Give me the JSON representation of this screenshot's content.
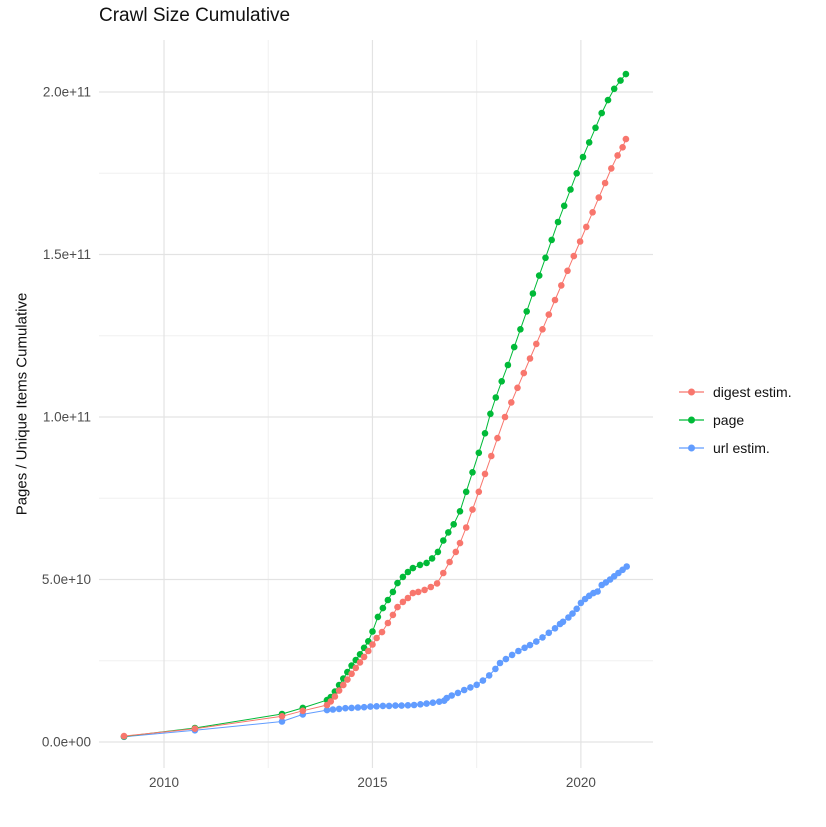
{
  "title": "Crawl Size Cumulative",
  "axes": {
    "y_title": "Pages / Unique Items Cumulative",
    "x_title": ""
  },
  "legend": {
    "position": "right",
    "items": [
      {
        "label": "digest estim.",
        "color": "#F8766D"
      },
      {
        "label": "page",
        "color": "#00BA38"
      },
      {
        "label": "url estim.",
        "color": "#619CFF"
      }
    ]
  },
  "chart_data": {
    "type": "line",
    "title": "Crawl Size Cumulative",
    "xlabel": "",
    "ylabel": "Pages / Unique Items Cumulative",
    "x_domain": [
      2008.44,
      2021.73
    ],
    "y_domain": [
      -8,
      216
    ],
    "y_unit": "1e9",
    "x_ticks": [
      {
        "value": 2010,
        "label": "2010"
      },
      {
        "value": 2015,
        "label": "2015"
      },
      {
        "value": 2020,
        "label": "2020"
      }
    ],
    "x_minor_ticks": [
      2012.5,
      2017.5
    ],
    "y_ticks": [
      {
        "value": 0,
        "label": "0.0e+00"
      },
      {
        "value": 50,
        "label": "5.0e+10"
      },
      {
        "value": 100,
        "label": "1.0e+11"
      },
      {
        "value": 150,
        "label": "1.5e+11"
      },
      {
        "value": 200,
        "label": "2.0e+11"
      }
    ],
    "y_minor_ticks": [
      25,
      75,
      125,
      175
    ],
    "grid": {
      "major_color": "#E3E3E3",
      "minor_color": "#F0F0F0",
      "background": "#FFFFFF"
    },
    "marker_radius": 3.3,
    "series": [
      {
        "name": "digest estim.",
        "color": "#F8766D",
        "points": [
          [
            2009.04,
            1.8
          ],
          [
            2010.74,
            4.1
          ],
          [
            2012.83,
            7.9
          ],
          [
            2013.33,
            9.6
          ],
          [
            2013.91,
            11.4
          ],
          [
            2014.0,
            12.5
          ],
          [
            2014.1,
            14.0
          ],
          [
            2014.2,
            15.8
          ],
          [
            2014.3,
            17.5
          ],
          [
            2014.4,
            19.2
          ],
          [
            2014.5,
            21.0
          ],
          [
            2014.6,
            22.8
          ],
          [
            2014.7,
            24.5
          ],
          [
            2014.8,
            26.2
          ],
          [
            2014.9,
            28.0
          ],
          [
            2015.0,
            30.0
          ],
          [
            2015.1,
            32.0
          ],
          [
            2015.23,
            33.8
          ],
          [
            2015.37,
            36.6
          ],
          [
            2015.49,
            39.1
          ],
          [
            2015.6,
            41.5
          ],
          [
            2015.73,
            43.1
          ],
          [
            2015.85,
            44.3
          ],
          [
            2015.97,
            45.8
          ],
          [
            2016.1,
            46.2
          ],
          [
            2016.25,
            46.8
          ],
          [
            2016.4,
            47.7
          ],
          [
            2016.55,
            48.8
          ],
          [
            2016.7,
            52.0
          ],
          [
            2016.85,
            55.4
          ],
          [
            2017.0,
            58.5
          ],
          [
            2017.1,
            61.2
          ],
          [
            2017.25,
            66.0
          ],
          [
            2017.4,
            71.5
          ],
          [
            2017.55,
            77.0
          ],
          [
            2017.7,
            82.5
          ],
          [
            2017.85,
            88.0
          ],
          [
            2018.0,
            93.5
          ],
          [
            2018.18,
            100.0
          ],
          [
            2018.33,
            104.5
          ],
          [
            2018.48,
            109.0
          ],
          [
            2018.63,
            113.5
          ],
          [
            2018.78,
            118.0
          ],
          [
            2018.93,
            122.5
          ],
          [
            2019.08,
            127.0
          ],
          [
            2019.23,
            131.5
          ],
          [
            2019.38,
            136.0
          ],
          [
            2019.53,
            140.5
          ],
          [
            2019.68,
            145.0
          ],
          [
            2019.83,
            149.5
          ],
          [
            2019.98,
            154.0
          ],
          [
            2020.13,
            158.5
          ],
          [
            2020.28,
            163.0
          ],
          [
            2020.43,
            167.5
          ],
          [
            2020.58,
            172.0
          ],
          [
            2020.73,
            176.5
          ],
          [
            2020.88,
            180.5
          ],
          [
            2021.0,
            183.0
          ],
          [
            2021.08,
            185.5
          ]
        ]
      },
      {
        "name": "page",
        "color": "#00BA38",
        "points": [
          [
            2009.04,
            1.7
          ],
          [
            2010.74,
            4.3
          ],
          [
            2012.83,
            8.6
          ],
          [
            2013.33,
            10.5
          ],
          [
            2013.91,
            12.9
          ],
          [
            2014.0,
            13.8
          ],
          [
            2014.1,
            15.5
          ],
          [
            2014.2,
            17.5
          ],
          [
            2014.3,
            19.5
          ],
          [
            2014.4,
            21.5
          ],
          [
            2014.5,
            23.5
          ],
          [
            2014.6,
            25.2
          ],
          [
            2014.7,
            27.0
          ],
          [
            2014.8,
            29.0
          ],
          [
            2014.9,
            31.0
          ],
          [
            2015.0,
            34.0
          ],
          [
            2015.13,
            38.5
          ],
          [
            2015.25,
            41.2
          ],
          [
            2015.37,
            43.7
          ],
          [
            2015.49,
            46.2
          ],
          [
            2015.6,
            48.9
          ],
          [
            2015.73,
            50.8
          ],
          [
            2015.85,
            52.3
          ],
          [
            2015.97,
            53.5
          ],
          [
            2016.14,
            54.5
          ],
          [
            2016.3,
            55.1
          ],
          [
            2016.43,
            56.5
          ],
          [
            2016.57,
            58.5
          ],
          [
            2016.7,
            62.0
          ],
          [
            2016.82,
            64.5
          ],
          [
            2016.95,
            67.0
          ],
          [
            2017.1,
            71.0
          ],
          [
            2017.25,
            77.0
          ],
          [
            2017.4,
            83.0
          ],
          [
            2017.55,
            89.0
          ],
          [
            2017.7,
            95.0
          ],
          [
            2017.83,
            101.0
          ],
          [
            2017.96,
            106.0
          ],
          [
            2018.1,
            111.0
          ],
          [
            2018.25,
            116.0
          ],
          [
            2018.4,
            121.5
          ],
          [
            2018.55,
            127.0
          ],
          [
            2018.7,
            132.5
          ],
          [
            2018.85,
            138.0
          ],
          [
            2019.0,
            143.5
          ],
          [
            2019.15,
            149.0
          ],
          [
            2019.3,
            154.5
          ],
          [
            2019.45,
            160.0
          ],
          [
            2019.6,
            165.0
          ],
          [
            2019.75,
            170.0
          ],
          [
            2019.9,
            175.0
          ],
          [
            2020.05,
            180.0
          ],
          [
            2020.2,
            184.5
          ],
          [
            2020.35,
            189.0
          ],
          [
            2020.5,
            193.5
          ],
          [
            2020.65,
            197.5
          ],
          [
            2020.8,
            201.0
          ],
          [
            2020.95,
            203.5
          ],
          [
            2021.08,
            205.5
          ]
        ]
      },
      {
        "name": "url estim.",
        "color": "#619CFF",
        "points": [
          [
            2009.04,
            1.6
          ],
          [
            2010.74,
            3.6
          ],
          [
            2012.83,
            6.3
          ],
          [
            2013.33,
            8.5
          ],
          [
            2013.91,
            9.8
          ],
          [
            2014.05,
            10.0
          ],
          [
            2014.2,
            10.2
          ],
          [
            2014.35,
            10.4
          ],
          [
            2014.5,
            10.5
          ],
          [
            2014.65,
            10.6
          ],
          [
            2014.8,
            10.7
          ],
          [
            2014.95,
            10.9
          ],
          [
            2015.1,
            11.0
          ],
          [
            2015.25,
            11.1
          ],
          [
            2015.4,
            11.1
          ],
          [
            2015.55,
            11.2
          ],
          [
            2015.7,
            11.2
          ],
          [
            2015.85,
            11.3
          ],
          [
            2016.0,
            11.4
          ],
          [
            2016.15,
            11.6
          ],
          [
            2016.3,
            11.8
          ],
          [
            2016.45,
            12.1
          ],
          [
            2016.6,
            12.4
          ],
          [
            2016.72,
            12.7
          ],
          [
            2016.78,
            13.5
          ],
          [
            2016.9,
            14.3
          ],
          [
            2017.05,
            15.1
          ],
          [
            2017.2,
            16.0
          ],
          [
            2017.35,
            16.8
          ],
          [
            2017.5,
            17.6
          ],
          [
            2017.65,
            18.9
          ],
          [
            2017.8,
            20.5
          ],
          [
            2017.95,
            22.5
          ],
          [
            2018.06,
            24.3
          ],
          [
            2018.2,
            25.5
          ],
          [
            2018.35,
            26.8
          ],
          [
            2018.5,
            28.0
          ],
          [
            2018.65,
            29.0
          ],
          [
            2018.78,
            29.8
          ],
          [
            2018.93,
            30.9
          ],
          [
            2019.08,
            32.2
          ],
          [
            2019.23,
            33.6
          ],
          [
            2019.38,
            35.0
          ],
          [
            2019.5,
            36.3
          ],
          [
            2019.57,
            37.0
          ],
          [
            2019.7,
            38.3
          ],
          [
            2019.8,
            39.5
          ],
          [
            2019.9,
            41.0
          ],
          [
            2020.0,
            42.8
          ],
          [
            2020.1,
            44.0
          ],
          [
            2020.2,
            45.0
          ],
          [
            2020.3,
            45.8
          ],
          [
            2020.4,
            46.3
          ],
          [
            2020.5,
            48.3
          ],
          [
            2020.6,
            49.1
          ],
          [
            2020.7,
            50.0
          ],
          [
            2020.8,
            51.0
          ],
          [
            2020.9,
            52.0
          ],
          [
            2021.0,
            53.0
          ],
          [
            2021.1,
            54.0
          ]
        ]
      }
    ]
  }
}
